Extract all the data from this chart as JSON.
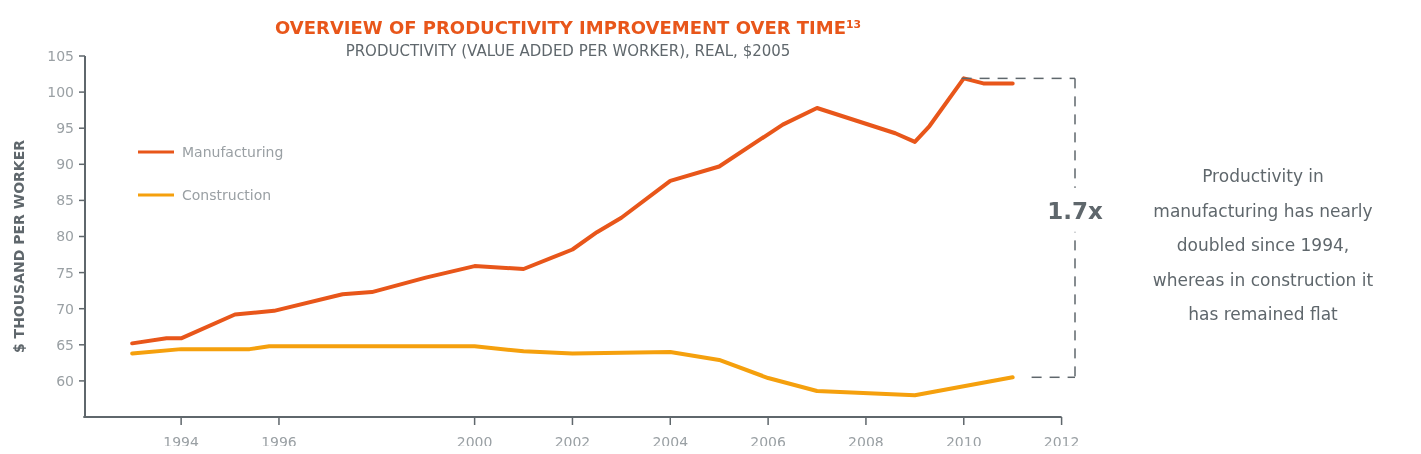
{
  "chart_data": {
    "type": "line",
    "title": "OVERVIEW OF PRODUCTIVITY IMPROVEMENT OVER TIME$^{13}$",
    "subtitle": "PRODUCTIVITY (VALUE ADDED PER WORKER), REAL, $2005",
    "ylabel": "$ THOUSAND PER WORKER",
    "annotations": [
      "1.7x",
      "Productivity in manufacturing has nearly doubled since 1994, whereas in construction it has remained flat"
    ],
    "series": [
      {
        "name": "Manufacturing",
        "color": "#e8561a",
        "x": [
          1993,
          1993.7,
          1994,
          1995.1,
          1995.9,
          1997.3,
          1997.9,
          1999,
          2000,
          2001,
          2002,
          2002.5,
          2003,
          2004,
          2005,
          2006.3,
          2007,
          2008.6,
          2009,
          2009.3,
          2010,
          2010.4,
          2011
        ],
        "values": [
          65.2,
          65.9,
          65.9,
          69.2,
          69.7,
          72.0,
          72.3,
          74.3,
          75.9,
          75.5,
          78.2,
          80.6,
          82.6,
          87.7,
          89.7,
          95.5,
          97.8,
          94.3,
          93.1,
          95.3,
          101.9,
          101.2,
          101.2
        ]
      },
      {
        "name": "Construction",
        "color": "#f5a00d",
        "x": [
          1993,
          1994,
          1995.4,
          1995.8,
          2000,
          2001,
          2002,
          2004,
          2005,
          2006,
          2007,
          2009,
          2011
        ],
        "values": [
          63.8,
          64.4,
          64.4,
          64.8,
          64.8,
          64.1,
          63.8,
          64.0,
          62.9,
          60.4,
          58.6,
          58.0,
          60.5
        ]
      }
    ],
    "xlim": [
      1992,
      2012
    ],
    "xticks": [
      1994,
      1996,
      2000,
      2002,
      2004,
      2006,
      2008,
      2010,
      2012
    ],
    "ylim": [
      55,
      105
    ],
    "yticks": [
      60,
      65,
      70,
      75,
      80,
      85,
      90,
      95,
      100,
      105
    ],
    "legend": "top left",
    "grid": false,
    "marker": "none",
    "line_style": "solid"
  }
}
